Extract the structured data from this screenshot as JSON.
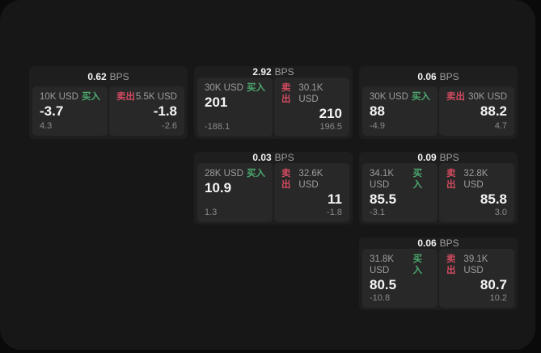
{
  "labels": {
    "bps_unit": "BPS",
    "buy": "买入",
    "sell": "卖出"
  },
  "colors": {
    "outer_bg": "#0a0a0a",
    "panel_bg": "#171717",
    "card_bg": "#1e1e1e",
    "tile_bg": "#282828",
    "text_primary": "#f5f5f5",
    "text_secondary": "#9d9d9d",
    "text_muted": "#8b8b8b",
    "buy_green": "#4ca86e",
    "sell_red": "#d04a60"
  },
  "cards": [
    {
      "bps_value": "0.62",
      "buy": {
        "amount": "10K USD",
        "value": "-3.7",
        "delta": "4.3"
      },
      "sell": {
        "amount": "5.5K USD",
        "value": "-1.8",
        "delta": "-2.6"
      }
    },
    {
      "bps_value": "2.92",
      "buy": {
        "amount": "30K USD",
        "value": "201",
        "delta": "-188.1"
      },
      "sell": {
        "amount": "30.1K USD",
        "value": "210",
        "delta": "196.5"
      }
    },
    {
      "bps_value": "0.06",
      "buy": {
        "amount": "30K USD",
        "value": "88",
        "delta": "-4.9"
      },
      "sell": {
        "amount": "30K USD",
        "value": "88.2",
        "delta": "4.7"
      }
    },
    {
      "bps_value": "0.03",
      "buy": {
        "amount": "28K USD",
        "value": "10.9",
        "delta": "1.3"
      },
      "sell": {
        "amount": "32.6K USD",
        "value": "11",
        "delta": "-1.8"
      }
    },
    {
      "bps_value": "0.09",
      "buy": {
        "amount": "34.1K USD",
        "value": "85.5",
        "delta": "-3.1"
      },
      "sell": {
        "amount": "32.8K USD",
        "value": "85.8",
        "delta": "3.0"
      }
    },
    {
      "bps_value": "0.06",
      "buy": {
        "amount": "31.8K USD",
        "value": "80.5",
        "delta": "-10.8"
      },
      "sell": {
        "amount": "39.1K USD",
        "value": "80.7",
        "delta": "10.2"
      }
    }
  ]
}
